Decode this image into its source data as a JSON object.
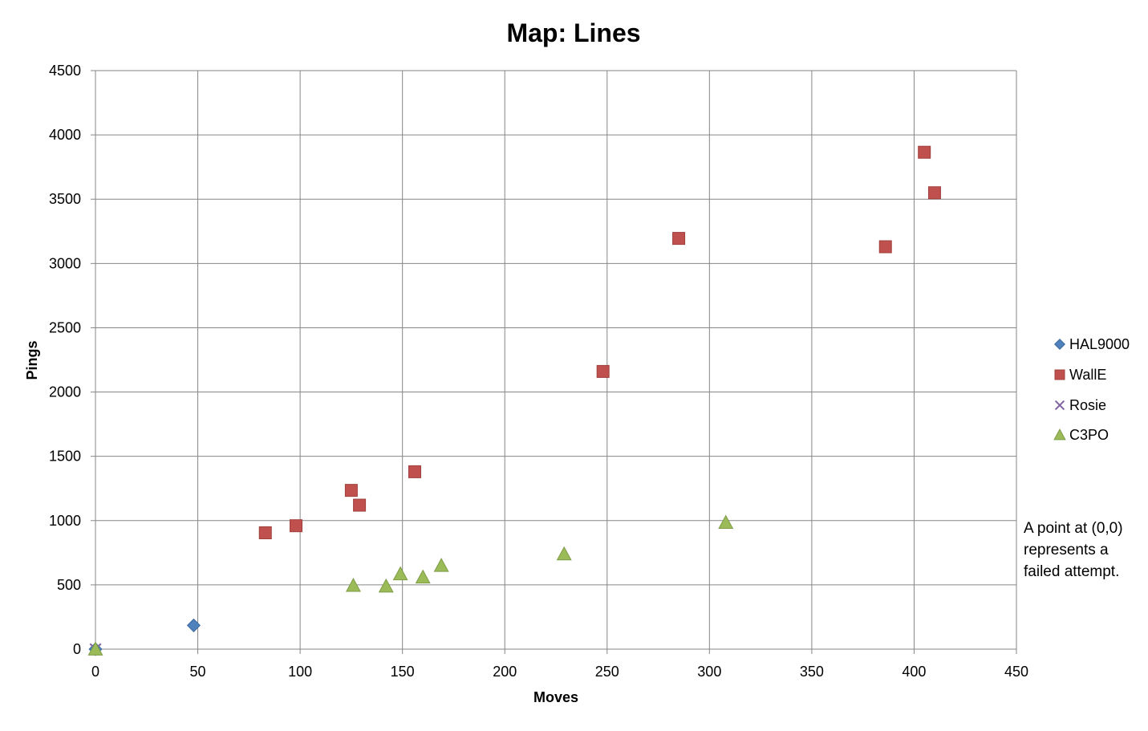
{
  "chart_data": {
    "type": "scatter",
    "title": "Map: Lines",
    "xlabel": "Moves",
    "ylabel": "Pings",
    "xlim": [
      0,
      450
    ],
    "ylim": [
      0,
      4500
    ],
    "x_ticks": [
      0,
      50,
      100,
      150,
      200,
      250,
      300,
      350,
      400,
      450
    ],
    "y_ticks": [
      0,
      500,
      1000,
      1500,
      2000,
      2500,
      3000,
      3500,
      4000,
      4500
    ],
    "grid": true,
    "legend_position": "right",
    "series": [
      {
        "name": "HAL9000",
        "marker": "diamond",
        "color": "#4F81BD",
        "points": [
          [
            0,
            0
          ],
          [
            48,
            185
          ]
        ]
      },
      {
        "name": "WallE",
        "marker": "square",
        "color": "#C0504D",
        "points": [
          [
            83,
            905
          ],
          [
            98,
            960
          ],
          [
            125,
            1235
          ],
          [
            129,
            1120
          ],
          [
            156,
            1380
          ],
          [
            248,
            2160
          ],
          [
            285,
            3195
          ],
          [
            386,
            3130
          ],
          [
            405,
            3865
          ],
          [
            410,
            3550
          ]
        ]
      },
      {
        "name": "Rosie",
        "marker": "x",
        "color": "#8064A2",
        "points": [
          [
            0,
            0
          ]
        ]
      },
      {
        "name": "C3PO",
        "marker": "triangle",
        "color": "#9BBB59",
        "points": [
          [
            0,
            0
          ],
          [
            126,
            495
          ],
          [
            142,
            490
          ],
          [
            149,
            585
          ],
          [
            160,
            560
          ],
          [
            169,
            650
          ],
          [
            229,
            740
          ],
          [
            308,
            985
          ]
        ]
      }
    ],
    "annotation": "A point at (0,0) represents a failed attempt.",
    "annotation_lines": [
      "A point at (0,0)",
      "represents a",
      "failed attempt."
    ]
  }
}
